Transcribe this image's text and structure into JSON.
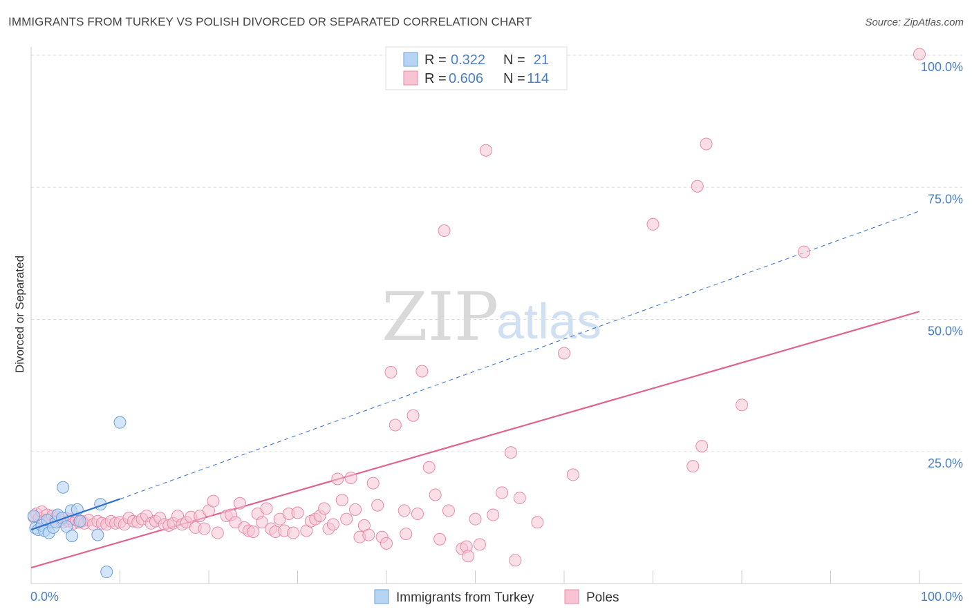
{
  "header": {
    "title": "IMMIGRANTS FROM TURKEY VS POLISH DIVORCED OR SEPARATED CORRELATION CHART",
    "source": "Source: ZipAtlas.com"
  },
  "watermark": {
    "part1": "ZIP",
    "part2": "atlas"
  },
  "legend": {
    "r_label": "R =",
    "n_label": "N =",
    "items": [
      {
        "r": "0.322",
        "n": "21"
      },
      {
        "r": "0.606",
        "n": "114"
      }
    ]
  },
  "bottom_legend": {
    "turkey": "Immigrants from Turkey",
    "poles": "Poles"
  },
  "colors": {
    "turkey_fill": "#b8d4f5",
    "turkey_stroke": "#6a9fd8",
    "turkey_line": "#2f6fcf",
    "poles_fill": "#f8c4d4",
    "poles_stroke": "#e88aa8",
    "poles_line": "#e0628d"
  },
  "chart_data": {
    "type": "scatter",
    "title": "IMMIGRANTS FROM TURKEY VS POLISH DIVORCED OR SEPARATED CORRELATION CHART",
    "xlabel": "",
    "ylabel": "Divorced or Separated",
    "xlim": [
      0,
      100
    ],
    "ylim": [
      0,
      100
    ],
    "x_tick_labels": [
      "0.0%",
      "100.0%"
    ],
    "y_ticks": [
      25,
      50,
      75,
      100
    ],
    "y_tick_labels": [
      "25.0%",
      "50.0%",
      "75.0%",
      "100.0%"
    ],
    "grid": true,
    "legend_position": "top-center",
    "series": [
      {
        "name": "Immigrants from Turkey",
        "r": 0.322,
        "n": 21,
        "trend": {
          "x0": 0,
          "y0": 10.2,
          "x1": 10,
          "y1": 16,
          "dashed_to_x": 100,
          "dashed_to_y": 70.5
        },
        "points": [
          [
            0.3,
            12.8
          ],
          [
            0.5,
            10.5
          ],
          [
            0.8,
            10.2
          ],
          [
            1.2,
            11.0
          ],
          [
            1.5,
            10.0
          ],
          [
            1.8,
            12.0
          ],
          [
            2.0,
            9.6
          ],
          [
            2.5,
            10.6
          ],
          [
            2.8,
            11.6
          ],
          [
            3.0,
            13.0
          ],
          [
            3.5,
            12.4
          ],
          [
            3.6,
            18.2
          ],
          [
            4.0,
            10.8
          ],
          [
            4.5,
            13.8
          ],
          [
            4.6,
            9.0
          ],
          [
            5.2,
            14.0
          ],
          [
            5.5,
            11.8
          ],
          [
            7.5,
            9.2
          ],
          [
            7.8,
            15.0
          ],
          [
            8.5,
            2.2
          ],
          [
            10.0,
            30.5
          ]
        ]
      },
      {
        "name": "Poles",
        "r": 0.606,
        "n": 114,
        "trend": {
          "x0": 0,
          "y0": 3,
          "x1": 100,
          "y1": 51.5
        },
        "points": [
          [
            0.3,
            12.6
          ],
          [
            0.6,
            13.2
          ],
          [
            0.9,
            12.4
          ],
          [
            1.2,
            13.6
          ],
          [
            1.5,
            12.0
          ],
          [
            1.8,
            13.0
          ],
          [
            2.1,
            12.2
          ],
          [
            2.4,
            12.8
          ],
          [
            2.7,
            11.8
          ],
          [
            3.0,
            12.6
          ],
          [
            3.3,
            12.0
          ],
          [
            3.6,
            11.6
          ],
          [
            3.9,
            12.4
          ],
          [
            4.2,
            11.8
          ],
          [
            4.5,
            12.2
          ],
          [
            4.8,
            11.4
          ],
          [
            5.1,
            12.0
          ],
          [
            5.4,
            11.6
          ],
          [
            5.7,
            11.8
          ],
          [
            6.0,
            11.4
          ],
          [
            6.5,
            12.0
          ],
          [
            7.0,
            11.2
          ],
          [
            7.5,
            11.8
          ],
          [
            8.0,
            11.4
          ],
          [
            8.5,
            11.2
          ],
          [
            9.0,
            11.8
          ],
          [
            9.5,
            11.4
          ],
          [
            10.0,
            11.6
          ],
          [
            10.5,
            11.2
          ],
          [
            11.0,
            12.4
          ],
          [
            11.5,
            11.8
          ],
          [
            12.0,
            11.6
          ],
          [
            12.5,
            12.2
          ],
          [
            13.0,
            12.8
          ],
          [
            13.5,
            11.4
          ],
          [
            14.0,
            11.8
          ],
          [
            14.5,
            12.4
          ],
          [
            15.0,
            11.2
          ],
          [
            15.5,
            11.0
          ],
          [
            16.0,
            11.4
          ],
          [
            16.5,
            12.8
          ],
          [
            17.0,
            11.2
          ],
          [
            17.5,
            11.6
          ],
          [
            18.0,
            12.6
          ],
          [
            18.5,
            10.6
          ],
          [
            19.0,
            12.8
          ],
          [
            19.5,
            10.4
          ],
          [
            20.0,
            13.8
          ],
          [
            20.5,
            15.6
          ],
          [
            21.0,
            9.6
          ],
          [
            22.0,
            12.8
          ],
          [
            22.5,
            13.0
          ],
          [
            23.0,
            11.6
          ],
          [
            23.5,
            15.2
          ],
          [
            24.0,
            10.6
          ],
          [
            24.5,
            10.0
          ],
          [
            25.0,
            9.8
          ],
          [
            25.5,
            13.2
          ],
          [
            26.0,
            11.6
          ],
          [
            26.5,
            14.2
          ],
          [
            27.0,
            10.4
          ],
          [
            27.5,
            9.8
          ],
          [
            28.0,
            12.2
          ],
          [
            28.5,
            10.0
          ],
          [
            29.0,
            13.2
          ],
          [
            29.5,
            9.6
          ],
          [
            30.0,
            13.4
          ],
          [
            31.0,
            10.0
          ],
          [
            31.5,
            11.8
          ],
          [
            32.0,
            12.2
          ],
          [
            32.5,
            12.8
          ],
          [
            33.0,
            14.2
          ],
          [
            33.5,
            10.4
          ],
          [
            34.0,
            11.2
          ],
          [
            34.5,
            19.8
          ],
          [
            35.0,
            15.8
          ],
          [
            35.5,
            12.2
          ],
          [
            36.0,
            20.0
          ],
          [
            36.5,
            14.0
          ],
          [
            37.0,
            8.8
          ],
          [
            37.5,
            11.0
          ],
          [
            38.0,
            9.2
          ],
          [
            38.5,
            19.0
          ],
          [
            39.0,
            14.8
          ],
          [
            39.5,
            8.8
          ],
          [
            40.0,
            7.6
          ],
          [
            40.5,
            40.0
          ],
          [
            41.0,
            30.0
          ],
          [
            42.0,
            13.8
          ],
          [
            42.2,
            9.4
          ],
          [
            43.0,
            31.8
          ],
          [
            43.5,
            13.2
          ],
          [
            44.0,
            40.2
          ],
          [
            44.8,
            22.0
          ],
          [
            45.5,
            16.8
          ],
          [
            46.0,
            8.4
          ],
          [
            46.5,
            66.8
          ],
          [
            47.0,
            13.8
          ],
          [
            48.5,
            6.6
          ],
          [
            49.0,
            7.0
          ],
          [
            49.2,
            5.2
          ],
          [
            50.0,
            12.2
          ],
          [
            50.5,
            7.4
          ],
          [
            51.2,
            82.0
          ],
          [
            52.0,
            13.0
          ],
          [
            53.0,
            17.2
          ],
          [
            54.0,
            24.8
          ],
          [
            54.5,
            4.4
          ],
          [
            55.0,
            16.2
          ],
          [
            57.0,
            11.6
          ],
          [
            60.0,
            43.6
          ],
          [
            61.0,
            20.6
          ],
          [
            70.0,
            68.0
          ],
          [
            74.5,
            22.2
          ],
          [
            75.0,
            75.2
          ],
          [
            75.5,
            26.0
          ],
          [
            76.0,
            83.2
          ],
          [
            80.0,
            33.8
          ],
          [
            87.0,
            62.8
          ],
          [
            100.0,
            100.2
          ]
        ]
      }
    ]
  }
}
